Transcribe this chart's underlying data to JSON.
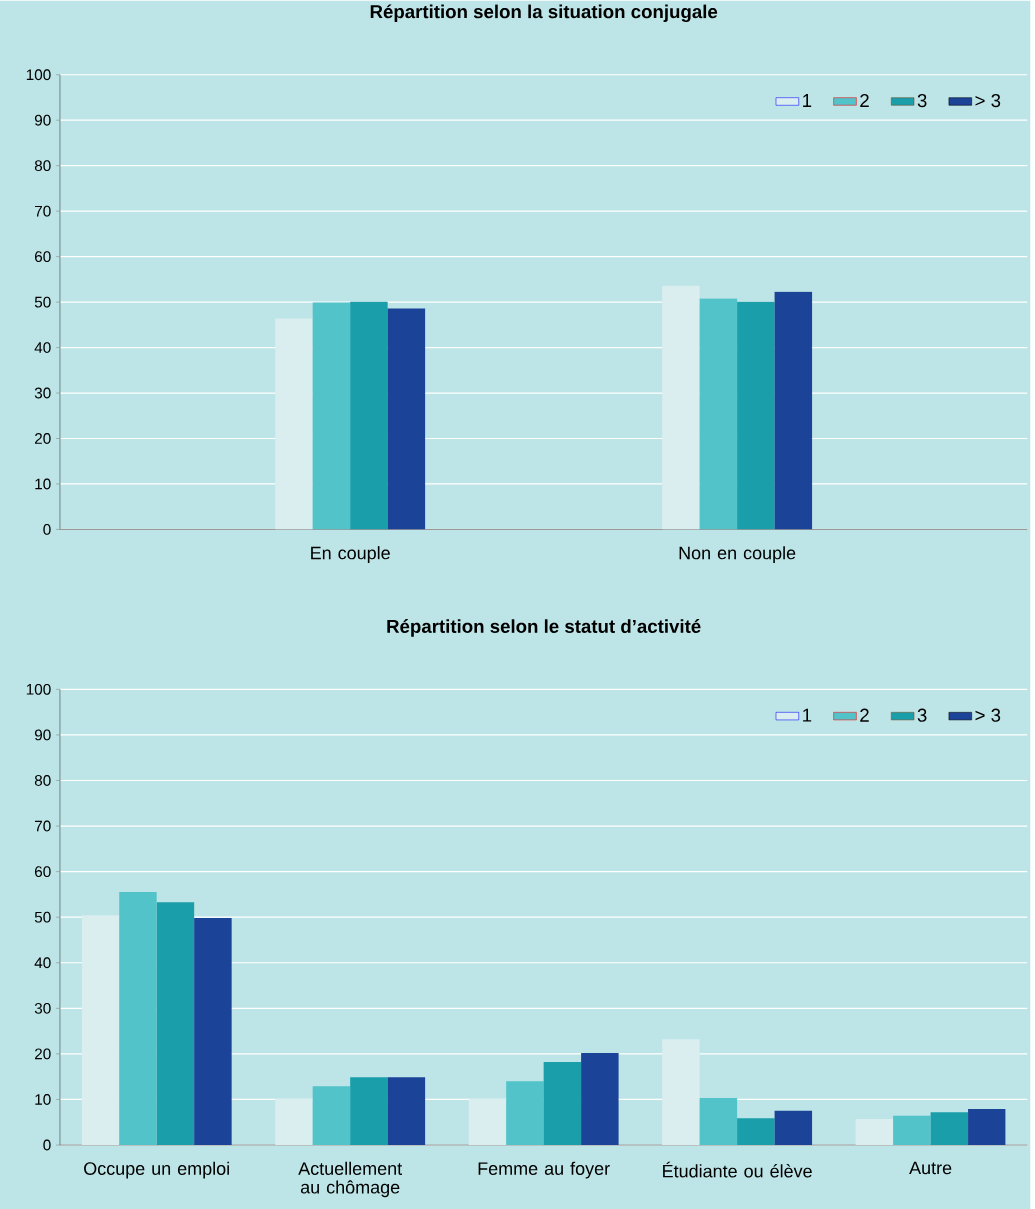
{
  "chart_data": [
    {
      "type": "bar",
      "title": "Répartition selon la situation conjugale",
      "categories": [
        null,
        "En couple",
        null,
        "Non en couple",
        null
      ],
      "series": [
        {
          "name": "1",
          "color": "#daeef0",
          "values": [
            null,
            46.4,
            null,
            53.6,
            null
          ]
        },
        {
          "name": "2",
          "color": "#52c3c9",
          "values": [
            null,
            49.9,
            null,
            50.8,
            null
          ]
        },
        {
          "name": "3",
          "color": "#1a9eaa",
          "values": [
            null,
            50.1,
            null,
            50.1,
            null
          ]
        },
        {
          "name": "> 3",
          "color": "#1b4397",
          "values": [
            null,
            48.6,
            null,
            52.3,
            null
          ]
        }
      ],
      "ylim": [
        0,
        100
      ],
      "yticks": [
        0,
        10,
        20,
        30,
        40,
        50,
        60,
        70,
        80,
        90,
        100
      ],
      "grid": "y",
      "legend": "top right"
    },
    {
      "type": "bar",
      "title": "Répartition selon le statut d’activité",
      "categories": [
        "Occupe un emploi",
        "Actuellement au chômage",
        "Femme au foyer",
        "Étudiante ou élève",
        "Autre"
      ],
      "series": [
        {
          "name": "1",
          "color": "#daeef0",
          "values": [
            50.4,
            10.1,
            10.1,
            23.2,
            5.7
          ]
        },
        {
          "name": "2",
          "color": "#52c3c9",
          "values": [
            55.5,
            12.9,
            14.0,
            10.3,
            6.4
          ]
        },
        {
          "name": "3",
          "color": "#1a9eaa",
          "values": [
            53.3,
            14.9,
            18.2,
            5.9,
            7.2
          ]
        },
        {
          "name": "> 3",
          "color": "#1b4397",
          "values": [
            49.8,
            14.9,
            20.2,
            7.5,
            7.9
          ]
        }
      ],
      "ylim": [
        0,
        100
      ],
      "yticks": [
        0,
        10,
        20,
        30,
        40,
        50,
        60,
        70,
        80,
        90,
        100
      ],
      "grid": "y",
      "legend": "top right"
    }
  ]
}
